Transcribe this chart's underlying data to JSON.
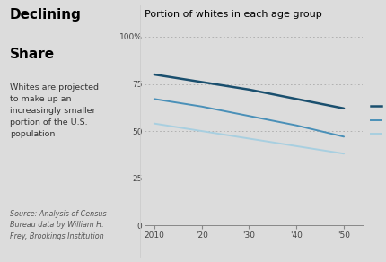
{
  "title": "Portion of whites in each age group",
  "left_title": "Declining\nShare",
  "left_subtitle": "Whites are projected\nto make up an\nincreasingly smaller\nportion of the U.S.\npopulation",
  "source_text": "Source: Analysis of Census\nBureau data by William H.\nFrey, Brookings Institution",
  "years": [
    2010,
    2020,
    2030,
    2040,
    2050
  ],
  "ages_65plus": [
    80,
    76,
    72,
    67,
    62
  ],
  "ages_18_64": [
    67,
    63,
    58,
    53,
    47
  ],
  "ages_0_17": [
    54,
    50,
    46,
    42,
    38
  ],
  "color_65plus": "#1a4f6e",
  "color_18_64": "#4a90b8",
  "color_0_17": "#a8cfe0",
  "background_color": "#dcdcdc",
  "yticks": [
    0,
    25,
    50,
    75,
    100
  ],
  "ytick_labels": [
    "0",
    "25",
    "50",
    "75",
    "100%"
  ],
  "xtick_labels": [
    "2010",
    "'20",
    "'30",
    "'40",
    "'50"
  ],
  "ylim": [
    0,
    107
  ],
  "xlim": [
    2008,
    2054
  ]
}
